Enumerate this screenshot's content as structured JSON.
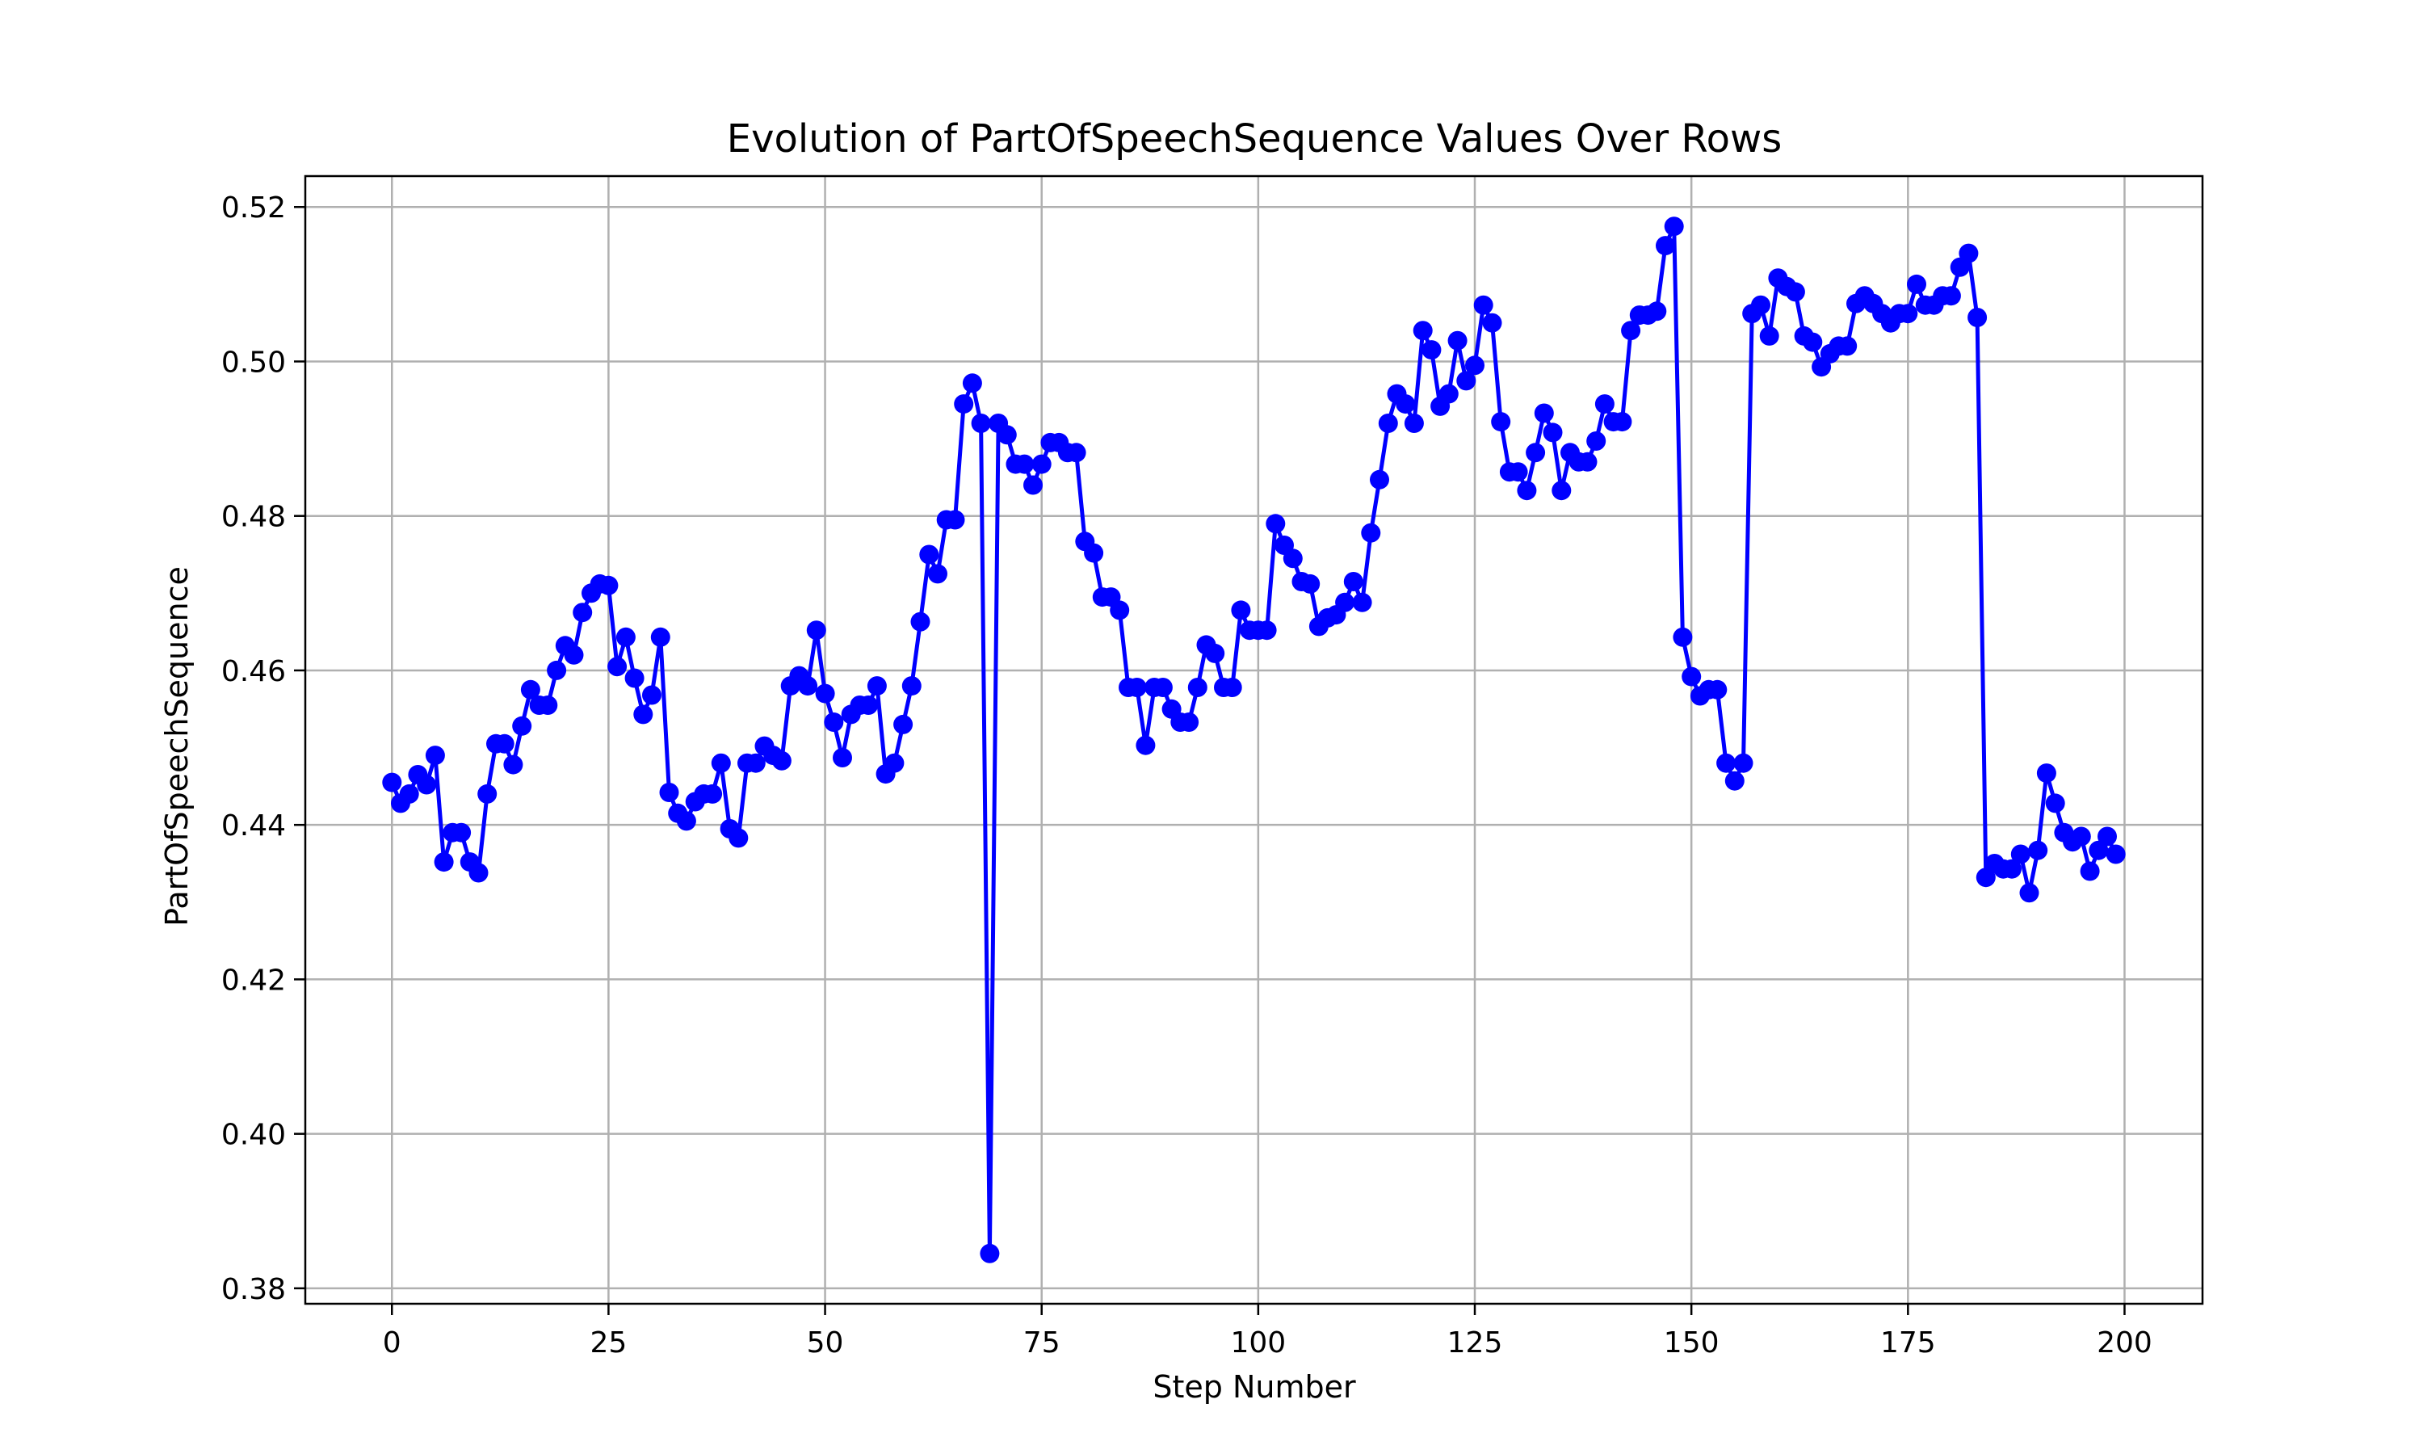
{
  "chart_data": {
    "type": "line",
    "title": "Evolution of PartOfSpeechSequence Values Over Rows",
    "xlabel": "Step Number",
    "ylabel": "PartOfSpeechSequence",
    "xlim": [
      -10,
      209
    ],
    "ylim": [
      0.378,
      0.524
    ],
    "xticks": [
      0,
      25,
      50,
      75,
      100,
      125,
      150,
      175,
      200
    ],
    "xtick_labels": [
      "0",
      "25",
      "50",
      "75",
      "100",
      "125",
      "150",
      "175",
      "200"
    ],
    "yticks": [
      0.38,
      0.4,
      0.42,
      0.44,
      0.46,
      0.48,
      0.5,
      0.52
    ],
    "ytick_labels": [
      "0.38",
      "0.40",
      "0.42",
      "0.44",
      "0.46",
      "0.48",
      "0.50",
      "0.52"
    ],
    "grid": true,
    "colors": {
      "series": "#0000ff"
    },
    "series": [
      {
        "marker": "circle",
        "x": [
          0,
          1,
          2,
          3,
          4,
          5,
          6,
          7,
          8,
          9,
          10,
          11,
          12,
          13,
          14,
          15,
          16,
          17,
          18,
          19,
          20,
          21,
          22,
          23,
          24,
          25,
          26,
          27,
          28,
          29,
          30,
          31,
          32,
          33,
          34,
          35,
          36,
          37,
          38,
          39,
          40,
          41,
          42,
          43,
          44,
          45,
          46,
          47,
          48,
          49,
          50,
          51,
          52,
          53,
          54,
          55,
          56,
          57,
          58,
          59,
          60,
          61,
          62,
          63,
          64,
          65,
          66,
          67,
          68,
          69,
          70,
          71,
          72,
          73,
          74,
          75,
          76,
          77,
          78,
          79,
          80,
          81,
          82,
          83,
          84,
          85,
          86,
          87,
          88,
          89,
          90,
          91,
          92,
          93,
          94,
          95,
          96,
          97,
          98,
          99,
          100,
          101,
          102,
          103,
          104,
          105,
          106,
          107,
          108,
          109,
          110,
          111,
          112,
          113,
          114,
          115,
          116,
          117,
          118,
          119,
          120,
          121,
          122,
          123,
          124,
          125,
          126,
          127,
          128,
          129,
          130,
          131,
          132,
          133,
          134,
          135,
          136,
          137,
          138,
          139,
          140,
          141,
          142,
          143,
          144,
          145,
          146,
          147,
          148,
          149,
          150,
          151,
          152,
          153,
          154,
          155,
          156,
          157,
          158,
          159,
          160,
          161,
          162,
          163,
          164,
          165,
          166,
          167,
          168,
          169,
          170,
          171,
          172,
          173,
          174,
          175,
          176,
          177,
          178,
          179,
          180,
          181,
          182,
          183,
          184,
          185,
          186,
          187,
          188,
          189,
          190,
          191,
          192,
          193,
          194,
          195,
          196,
          197,
          198,
          199
        ],
        "y": [
          0.4455,
          0.4428,
          0.444,
          0.4465,
          0.4452,
          0.449,
          0.4352,
          0.439,
          0.439,
          0.4352,
          0.4338,
          0.444,
          0.4505,
          0.4505,
          0.4478,
          0.4528,
          0.4575,
          0.4555,
          0.4555,
          0.46,
          0.4632,
          0.462,
          0.4675,
          0.47,
          0.4712,
          0.471,
          0.4605,
          0.4643,
          0.459,
          0.4543,
          0.4568,
          0.4643,
          0.4442,
          0.4415,
          0.4405,
          0.443,
          0.444,
          0.444,
          0.448,
          0.4395,
          0.4383,
          0.448,
          0.448,
          0.4502,
          0.449,
          0.4483,
          0.458,
          0.4593,
          0.458,
          0.4652,
          0.457,
          0.4533,
          0.4487,
          0.4543,
          0.4555,
          0.4555,
          0.458,
          0.4466,
          0.448,
          0.453,
          0.458,
          0.4663,
          0.475,
          0.4725,
          0.4795,
          0.4795,
          0.4945,
          0.4972,
          0.492,
          0.3845,
          0.492,
          0.4905,
          0.4867,
          0.4867,
          0.484,
          0.4867,
          0.4895,
          0.4895,
          0.4882,
          0.4882,
          0.4767,
          0.4752,
          0.4695,
          0.4695,
          0.4678,
          0.4578,
          0.4578,
          0.4503,
          0.4578,
          0.4578,
          0.455,
          0.4533,
          0.4533,
          0.4578,
          0.4633,
          0.4622,
          0.4578,
          0.4578,
          0.4678,
          0.4652,
          0.4652,
          0.4652,
          0.479,
          0.4762,
          0.4745,
          0.4715,
          0.4712,
          0.4657,
          0.4668,
          0.4672,
          0.4688,
          0.4715,
          0.4688,
          0.4778,
          0.4847,
          0.492,
          0.4958,
          0.4945,
          0.492,
          0.504,
          0.5015,
          0.4942,
          0.4958,
          0.5027,
          0.4975,
          0.4995,
          0.5073,
          0.505,
          0.4922,
          0.4857,
          0.4857,
          0.4833,
          0.4882,
          0.4933,
          0.4908,
          0.4833,
          0.4882,
          0.487,
          0.487,
          0.4897,
          0.4945,
          0.4922,
          0.4922,
          0.504,
          0.506,
          0.506,
          0.5065,
          0.515,
          0.5175,
          0.4643,
          0.4592,
          0.4567,
          0.4575,
          0.4575,
          0.448,
          0.4457,
          0.448,
          0.5062,
          0.5073,
          0.5033,
          0.5108,
          0.5097,
          0.509,
          0.5033,
          0.5025,
          0.4993,
          0.501,
          0.502,
          0.502,
          0.5075,
          0.5085,
          0.5075,
          0.5062,
          0.505,
          0.5062,
          0.5062,
          0.51,
          0.5073,
          0.5073,
          0.5085,
          0.5085,
          0.5122,
          0.514,
          0.5057,
          0.4332,
          0.435,
          0.4343,
          0.4343,
          0.4362,
          0.4312,
          0.4367,
          0.4467,
          0.4428,
          0.439,
          0.4378,
          0.4385,
          0.434,
          0.4367,
          0.4385,
          0.4362
        ]
      }
    ]
  }
}
